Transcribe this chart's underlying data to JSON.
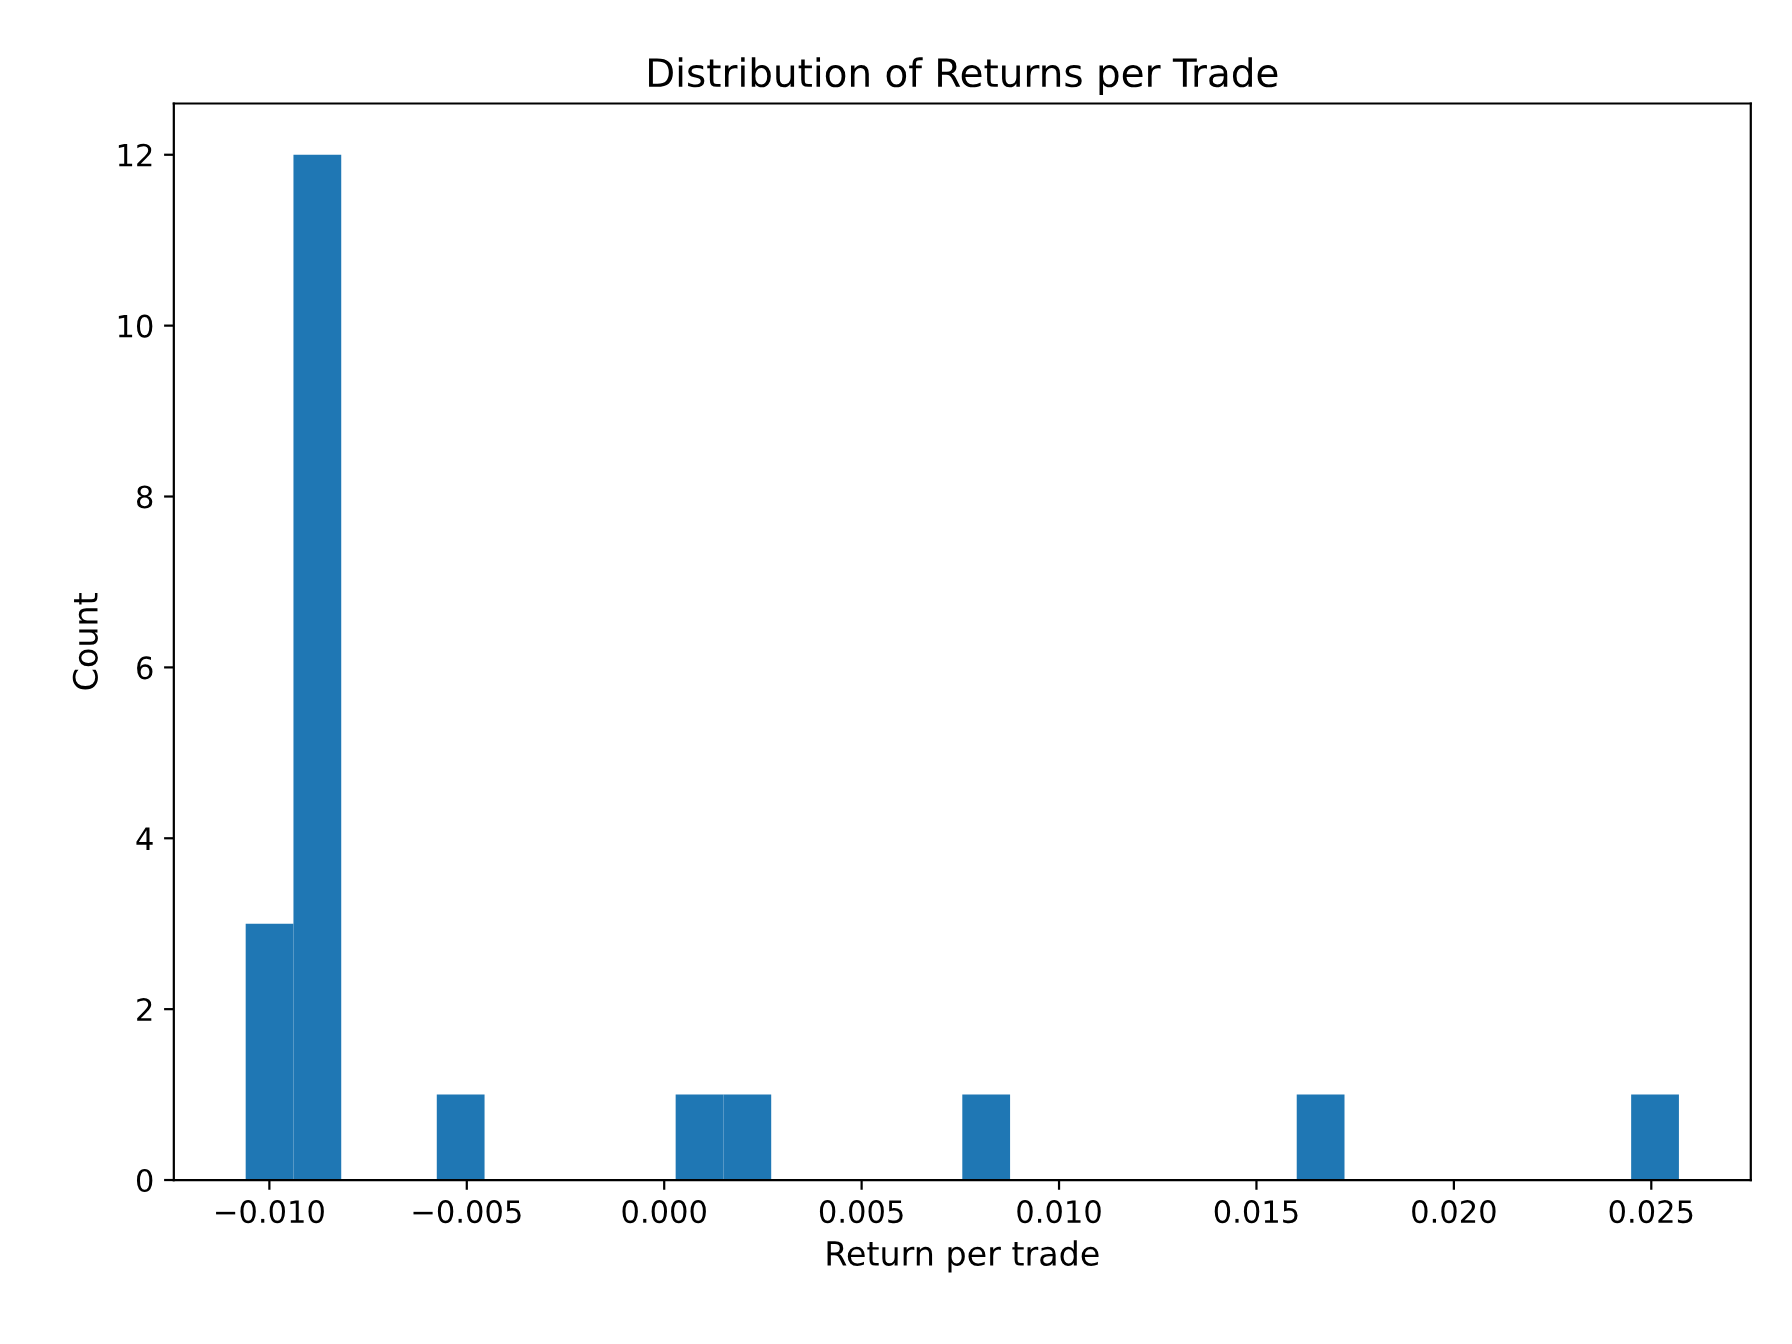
{
  "chart_data": {
    "type": "histogram",
    "title": "Distribution of Returns per Trade",
    "xlabel": "Return per trade",
    "ylabel": "Count",
    "bins": [
      -0.0106,
      -0.00939,
      -0.00818,
      -0.00697,
      -0.00576,
      -0.00455,
      -0.00334,
      -0.00213,
      -0.00092,
      0.00029,
      0.0015,
      0.00271,
      0.00392,
      0.00513,
      0.00634,
      0.00755,
      0.00876,
      0.00997,
      0.01118,
      0.01239,
      0.0136,
      0.01481,
      0.01602,
      0.01723,
      0.01844,
      0.01965,
      0.02086,
      0.02207,
      0.02328,
      0.02449,
      0.0257
    ],
    "values": [
      3,
      12,
      0,
      0,
      1,
      0,
      0,
      0,
      0,
      1,
      1,
      0,
      0,
      0,
      0,
      1,
      0,
      0,
      0,
      0,
      0,
      0,
      1,
      0,
      0,
      0,
      0,
      0,
      0,
      1
    ],
    "color": "#1f77b4",
    "xlim": [
      -0.01242,
      0.02752
    ],
    "xticks": [
      {
        "value": -0.01,
        "label": "−0.010"
      },
      {
        "value": -0.005,
        "label": "−0.005"
      },
      {
        "value": 0.0,
        "label": "0.000"
      },
      {
        "value": 0.005,
        "label": "0.005"
      },
      {
        "value": 0.01,
        "label": "0.010"
      },
      {
        "value": 0.015,
        "label": "0.015"
      },
      {
        "value": 0.02,
        "label": "0.020"
      },
      {
        "value": 0.025,
        "label": "0.025"
      }
    ],
    "ylim": [
      0,
      12.6
    ],
    "yticks": [
      0,
      2,
      4,
      6,
      8,
      10,
      12
    ]
  }
}
